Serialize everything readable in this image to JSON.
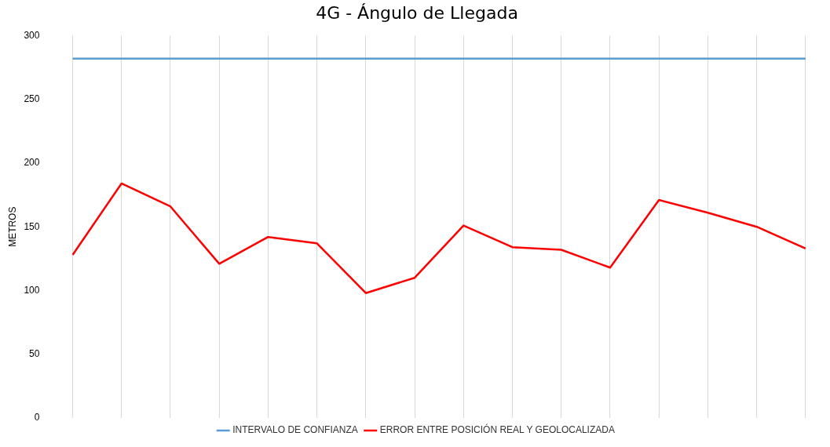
{
  "chart_data": {
    "type": "line",
    "title": "4G - Ángulo de Llegada",
    "ylabel": "METROS",
    "categories": [
      null,
      null,
      null,
      null,
      null,
      null,
      null,
      null,
      null,
      null,
      null,
      null,
      null,
      null,
      null,
      null
    ],
    "series": [
      {
        "name": "INTERVALO DE CONFIANZA",
        "color": "#5b9bd5",
        "values": [
          282,
          282,
          282,
          282,
          282,
          282,
          282,
          282,
          282,
          282,
          282,
          282,
          282,
          282,
          282,
          282
        ]
      },
      {
        "name": "ERROR ENTRE POSICIÓN REAL Y GEOLOCALIZADA",
        "color": "#ff0000",
        "values": [
          128,
          184,
          166,
          121,
          142,
          137,
          98,
          110,
          151,
          134,
          132,
          118,
          171,
          161,
          150,
          133
        ]
      }
    ],
    "ylim": [
      0,
      300
    ],
    "yticks": [
      0,
      50,
      100,
      150,
      200,
      250,
      300
    ],
    "grid": "x",
    "legend": "bottom",
    "marker": "none",
    "line_style": "solid",
    "tick_labels": "y"
  }
}
